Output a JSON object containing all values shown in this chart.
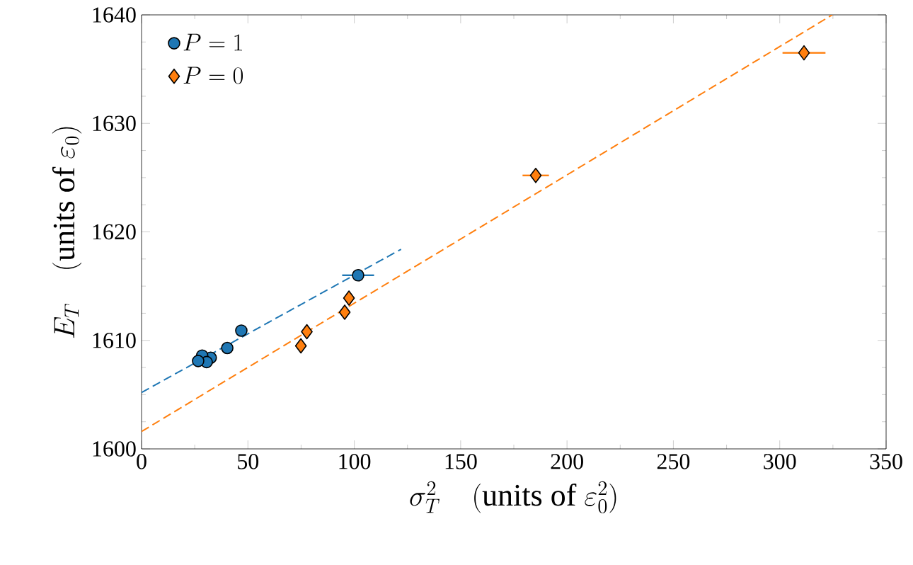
{
  "chart_data": {
    "type": "scatter",
    "xlabel": "\\sigma_T^2 \\quad (\\mathrm{units\\ of}\\ \\varepsilon_0^2)",
    "ylabel": "E_T \\quad (\\mathrm{units\\ of}\\ \\varepsilon_0)",
    "xlim": [
      0,
      350
    ],
    "ylim": [
      1600,
      1640
    ],
    "xticks": [
      0,
      50,
      100,
      150,
      200,
      250,
      300,
      350
    ],
    "yticks": [
      1600,
      1610,
      1620,
      1630,
      1640
    ],
    "legend": "top left",
    "grid": false,
    "series": [
      {
        "name": "P = 1",
        "color": "#1f77b4",
        "marker": "circle",
        "x": [
          101.8,
          46.9,
          40.3,
          32.5,
          28.5,
          30.6,
          26.6
        ],
        "values": [
          1616.0,
          1610.9,
          1609.3,
          1608.4,
          1608.6,
          1608.0,
          1608.1
        ],
        "xerrors": [
          7.5,
          null,
          null,
          null,
          null,
          null,
          null
        ]
      },
      {
        "name": "P = 0",
        "color": "#ff7f0e",
        "marker": "diamond",
        "x": [
          74.9,
          77.7,
          95.5,
          97.5,
          185.3,
          311.4
        ],
        "values": [
          1609.5,
          1610.8,
          1612.6,
          1613.9,
          1625.2,
          1636.5
        ],
        "xerrors": [
          null,
          null,
          null,
          null,
          6.2,
          10.1
        ]
      },
      {
        "type": "line",
        "color": "#1f77b4",
        "line_style": "dashed",
        "marker": "none",
        "x": [
          0,
          122
        ],
        "values": [
          1605.2,
          1618.4
        ]
      },
      {
        "type": "line",
        "color": "#ff7f0e",
        "line_style": "dashed",
        "marker": "none",
        "x": [
          0,
          324.7
        ],
        "values": [
          1601.6,
          1640
        ]
      }
    ]
  }
}
